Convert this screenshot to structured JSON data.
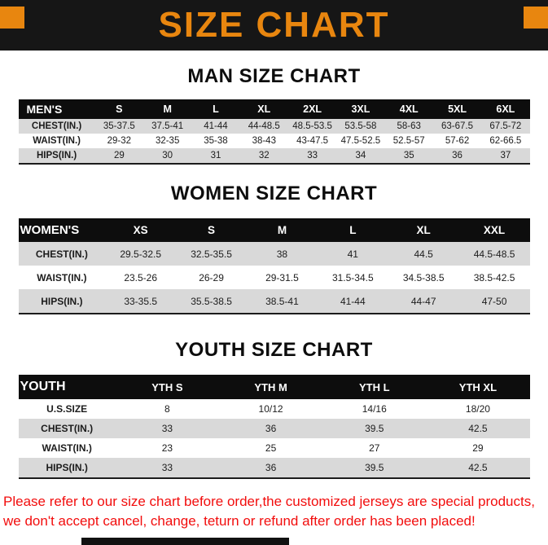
{
  "banner": {
    "title": "SIZE CHART"
  },
  "sections": [
    {
      "title": "MAN SIZE CHART",
      "table": {
        "header": [
          "MEN'S",
          "S",
          "M",
          "L",
          "XL",
          "2XL",
          "3XL",
          "4XL",
          "5XL",
          "6XL"
        ],
        "rows": [
          [
            "CHEST(IN.)",
            "35-37.5",
            "37.5-41",
            "41-44",
            "44-48.5",
            "48.5-53.5",
            "53.5-58",
            "58-63",
            "63-67.5",
            "67.5-72"
          ],
          [
            "WAIST(IN.)",
            "29-32",
            "32-35",
            "35-38",
            "38-43",
            "43-47.5",
            "47.5-52.5",
            "52.5-57",
            "57-62",
            "62-66.5"
          ],
          [
            "HIPS(IN.)",
            "29",
            "30",
            "31",
            "32",
            "33",
            "34",
            "35",
            "36",
            "37"
          ]
        ]
      }
    },
    {
      "title": "WOMEN SIZE CHART",
      "table": {
        "header": [
          "WOMEN'S",
          "XS",
          "S",
          "M",
          "L",
          "XL",
          "XXL"
        ],
        "rows": [
          [
            "CHEST(IN.)",
            "29.5-32.5",
            "32.5-35.5",
            "38",
            "41",
            "44.5",
            "44.5-48.5"
          ],
          [
            "WAIST(IN.)",
            "23.5-26",
            "26-29",
            "29-31.5",
            "31.5-34.5",
            "34.5-38.5",
            "38.5-42.5"
          ],
          [
            "HIPS(IN.)",
            "33-35.5",
            "35.5-38.5",
            "38.5-41",
            "41-44",
            "44-47",
            "47-50"
          ]
        ]
      }
    },
    {
      "title": "YOUTH SIZE CHART",
      "table": {
        "header": [
          "YOUTH",
          "YTH S",
          "YTH M",
          "YTH L",
          "YTH XL"
        ],
        "rows": [
          [
            "U.S.SIZE",
            "8",
            "10/12",
            "14/16",
            "18/20"
          ],
          [
            "CHEST(IN.)",
            "33",
            "36",
            "39.5",
            "42.5"
          ],
          [
            "WAIST(IN.)",
            "23",
            "25",
            "27",
            "29"
          ],
          [
            "HIPS(IN.)",
            "33",
            "36",
            "39.5",
            "42.5"
          ]
        ]
      }
    }
  ],
  "footer": {
    "lines": [
      "Please refer to our size chart before order,the customized jerseys are special products,",
      "we don't accept cancel, change, teturn or refund after order has been placed!"
    ]
  },
  "colors": {
    "accent_orange": "#E8860F",
    "banner_black": "#161616",
    "header_black": "#0D0D0D",
    "row_gray": "#D9D9D9",
    "footer_red": "#F20D0D"
  }
}
